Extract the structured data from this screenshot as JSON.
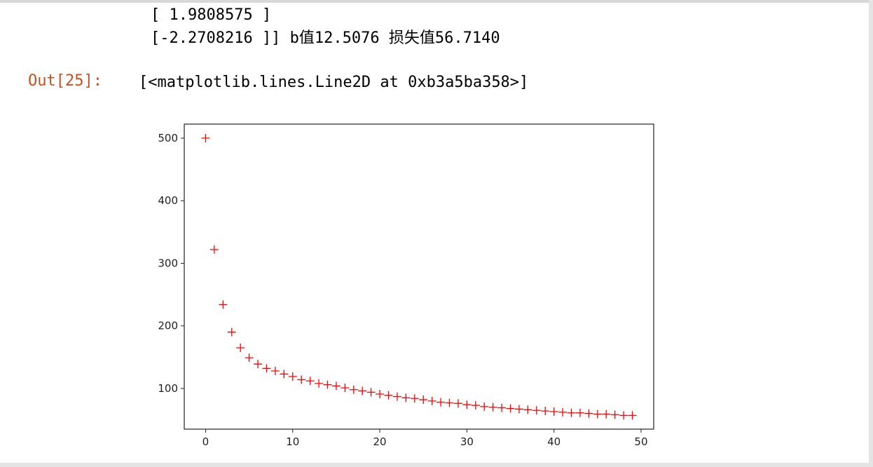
{
  "output_lines": [
    "[ 1.9808575 ]",
    "[-2.2708216 ]] b值12.5076 损失值56.7140"
  ],
  "prompt": "Out[25]:",
  "result": "[<matplotlib.lines.Line2D at 0xb3a5ba358>]",
  "chart_data": {
    "type": "scatter",
    "marker": "+",
    "color": "#ff0000",
    "x": [
      0,
      1,
      2,
      3,
      4,
      5,
      6,
      7,
      8,
      9,
      10,
      11,
      12,
      13,
      14,
      15,
      16,
      17,
      18,
      19,
      20,
      21,
      22,
      23,
      24,
      25,
      26,
      27,
      28,
      29,
      30,
      31,
      32,
      33,
      34,
      35,
      36,
      37,
      38,
      39,
      40,
      41,
      42,
      43,
      44,
      45,
      46,
      47,
      48,
      49
    ],
    "y": [
      500,
      322,
      234,
      190,
      165,
      149,
      139,
      132,
      128,
      123,
      119,
      114,
      112,
      108,
      106,
      104,
      101,
      98,
      96,
      94,
      91,
      89,
      87,
      85,
      84,
      82,
      80,
      78,
      77,
      76,
      74,
      73,
      71,
      70,
      69,
      68,
      67,
      66,
      65,
      64,
      63,
      62,
      61,
      61,
      60,
      59,
      59,
      58,
      57,
      57
    ],
    "xlim": [
      -2.45,
      51.45
    ],
    "ylim": [
      35,
      522.4
    ],
    "xticks": [
      0,
      10,
      20,
      30,
      40,
      50
    ],
    "yticks": [
      100,
      200,
      300,
      400,
      500
    ]
  }
}
